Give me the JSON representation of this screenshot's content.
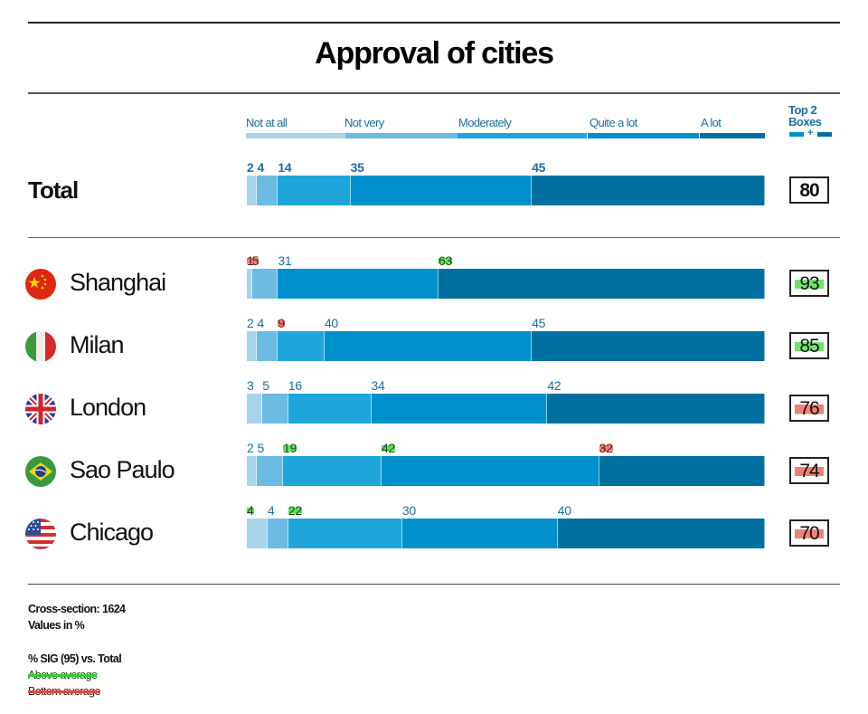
{
  "title": "Approval of cities",
  "legend": {
    "categories": [
      "Not at all",
      "Not very",
      "Moderately",
      "Quite a lot",
      "A lot"
    ],
    "colors": [
      "#a8d4ea",
      "#6bbbe2",
      "#1ea6db",
      "#0090cc",
      "#0070a0"
    ],
    "top2_line1": "Top 2",
    "top2_line2": "Boxes",
    "top2_plus": "+"
  },
  "chart_data": {
    "type": "bar",
    "stacked": true,
    "orientation": "horizontal",
    "title": "Approval of cities",
    "xlim": [
      0,
      100
    ],
    "series_names": [
      "Not at all",
      "Not very",
      "Moderately",
      "Quite a lot",
      "A lot"
    ],
    "rows": [
      {
        "label": "Total",
        "is_total": true,
        "flag": "",
        "values": [
          2,
          4,
          14,
          35,
          45
        ],
        "sig": [
          "",
          "",
          "",
          "",
          ""
        ],
        "top2": 80,
        "top2_sig": ""
      },
      {
        "label": "Shanghai",
        "flag": "china-flag",
        "values": [
          1,
          5,
          0,
          31,
          63
        ],
        "sig": [
          "down",
          "down",
          "",
          "",
          "up"
        ],
        "top2": 93,
        "top2_sig": "up"
      },
      {
        "label": "Milan",
        "flag": "italy-flag",
        "values": [
          2,
          4,
          9,
          40,
          45
        ],
        "sig": [
          "",
          "",
          "down",
          "",
          ""
        ],
        "top2": 85,
        "top2_sig": "up"
      },
      {
        "label": "London",
        "flag": "uk-flag",
        "values": [
          3,
          5,
          16,
          34,
          42
        ],
        "sig": [
          "",
          "",
          "",
          "",
          ""
        ],
        "top2": 76,
        "top2_sig": "down"
      },
      {
        "label": "Sao Paulo",
        "flag": "brazil-flag",
        "values": [
          2,
          5,
          19,
          42,
          32
        ],
        "sig": [
          "",
          "",
          "up",
          "up",
          "down"
        ],
        "top2": 74,
        "top2_sig": "down"
      },
      {
        "label": "Chicago",
        "flag": "usa-flag",
        "values": [
          4,
          4,
          22,
          30,
          40
        ],
        "sig": [
          "up",
          "",
          "up",
          "",
          ""
        ],
        "top2": 70,
        "top2_sig": "down"
      }
    ]
  },
  "footer": {
    "cross_section": "Cross-section: 1624",
    "values_in": "Values in %",
    "sig_title": "% SIG  (95) vs. Total",
    "above": "Above average",
    "below": "Bottom average"
  },
  "sig_colors": {
    "up": "#5de05a",
    "down": "#ef7a72"
  }
}
